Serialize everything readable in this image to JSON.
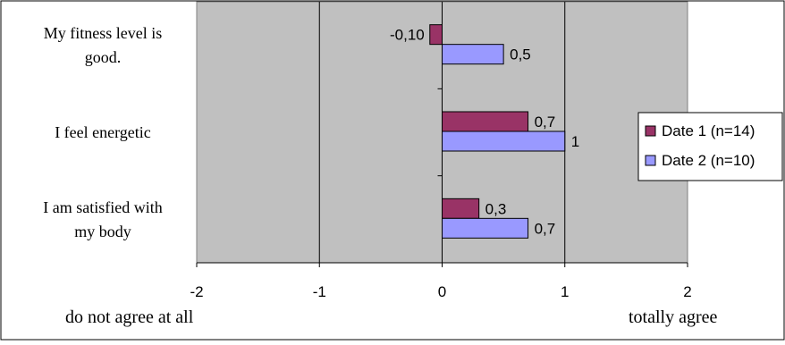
{
  "chart_data": {
    "type": "bar",
    "orientation": "horizontal",
    "categories": [
      "My fitness level is good.",
      "I feel energetic",
      "I am satisfied with my body"
    ],
    "category_lines": [
      [
        "My fitness level is",
        "good."
      ],
      [
        "I feel energetic"
      ],
      [
        "I am satisfied with",
        "my body"
      ]
    ],
    "series": [
      {
        "name": "Date 1 (n=14)",
        "color": "#993366",
        "values": [
          -0.1,
          0.7,
          0.3
        ],
        "labels": [
          "-0,10",
          "0,7",
          "0,3"
        ]
      },
      {
        "name": "Date 2 (n=10)",
        "color": "#9999ff",
        "values": [
          0.5,
          1,
          0.7
        ],
        "labels": [
          "0,5",
          "1",
          "0,7"
        ]
      }
    ],
    "xlim": [
      -2,
      2
    ],
    "x_ticks": [
      -2,
      -1,
      0,
      1,
      2
    ],
    "x_tick_labels": [
      "-2",
      "-1",
      "0",
      "1",
      "2"
    ],
    "xlabel_left": "do not agree at all",
    "xlabel_right": "totally agree",
    "grid": true,
    "plot_background": "#c0c0c0",
    "legend_position": "right"
  }
}
